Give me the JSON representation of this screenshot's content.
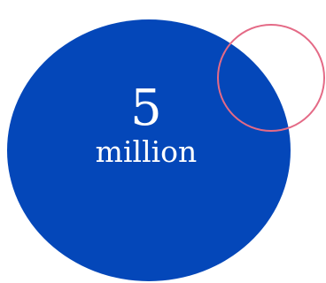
{
  "stat": {
    "number": "5",
    "unit": "million"
  },
  "colors": {
    "circle_fill": "#0447b9",
    "ring_stroke": "#e46a86",
    "text": "#ffffff",
    "background": "#ffffff"
  }
}
